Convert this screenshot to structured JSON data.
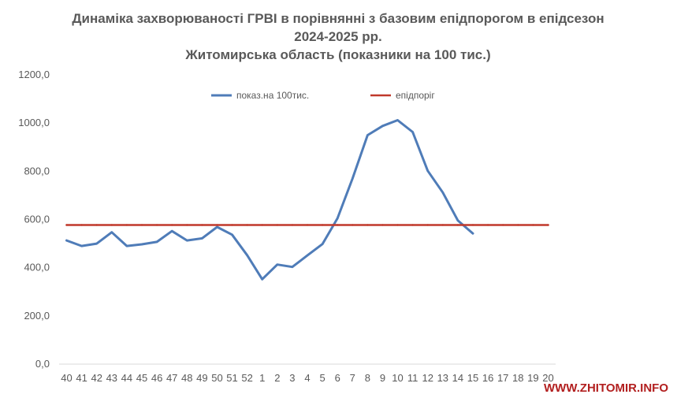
{
  "chart_data": {
    "type": "line",
    "title": [
      "Динаміка захворюваності ГРВІ в порівнянні з базовим епідпорогом в епідсезон",
      "2024-2025 рр.",
      "Житомирська область (показники на 100 тис.)"
    ],
    "categories": [
      "40",
      "41",
      "42",
      "43",
      "44",
      "45",
      "46",
      "47",
      "48",
      "49",
      "50",
      "51",
      "52",
      "1",
      "2",
      "3",
      "4",
      "5",
      "6",
      "7",
      "8",
      "9",
      "10",
      "11",
      "12",
      "13",
      "14",
      "15",
      "16",
      "17",
      "18",
      "19",
      "20"
    ],
    "series": [
      {
        "name": "показ.на 100тис.",
        "color": "#4f7cb8",
        "values": [
          513,
          490,
          500,
          547,
          490,
          497,
          507,
          552,
          513,
          522,
          569,
          537,
          452,
          352,
          413,
          403,
          451,
          498,
          605,
          770,
          950,
          988,
          1012,
          963,
          802,
          712,
          596,
          542,
          null,
          null,
          null,
          null,
          null
        ]
      },
      {
        "name": "епідпоріг",
        "color": "#c0392b",
        "values": [
          577,
          577,
          577,
          577,
          577,
          577,
          577,
          577,
          577,
          577,
          577,
          577,
          577,
          577,
          577,
          577,
          577,
          577,
          577,
          577,
          577,
          577,
          577,
          577,
          577,
          577,
          577,
          577,
          577,
          577,
          577,
          577,
          577
        ]
      }
    ],
    "y_ticks": [
      "0,0",
      "200,0",
      "400,0",
      "600,0",
      "800,0",
      "1000,0",
      "1200,0"
    ],
    "ylim": [
      0,
      1200
    ],
    "grid": false,
    "legend_position": "top"
  },
  "watermark": "WWW.ZHITOMIR.INFO"
}
